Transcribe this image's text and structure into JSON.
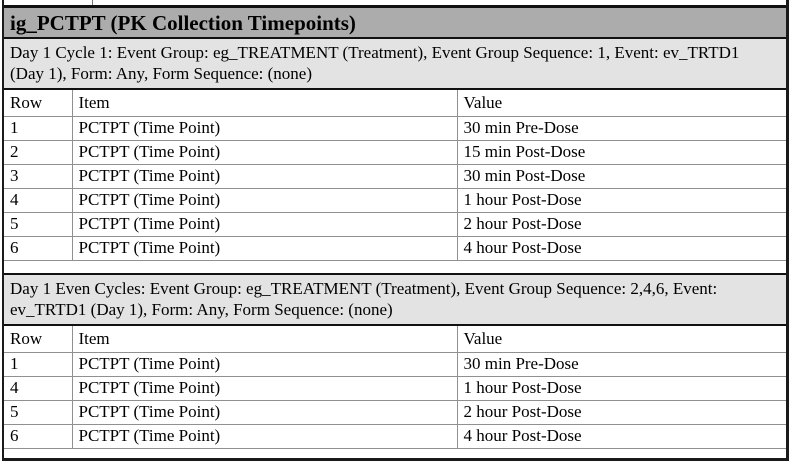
{
  "doc": {
    "title": "ig_PCTPT (PK Collection Timepoints)"
  },
  "columns": {
    "row": "Row",
    "item": "Item",
    "value": "Value"
  },
  "sections": [
    {
      "header": "Day 1 Cycle 1: Event Group: eg_TREATMENT (Treatment), Event Group Sequence: 1, Event: ev_TRTD1 (Day 1), Form: Any, Form Sequence: (none)",
      "rows": [
        {
          "row": "1",
          "item": "PCTPT (Time Point)",
          "value": "30 min Pre-Dose"
        },
        {
          "row": "2",
          "item": "PCTPT (Time Point)",
          "value": "15 min Post-Dose"
        },
        {
          "row": "3",
          "item": "PCTPT (Time Point)",
          "value": "30 min Post-Dose"
        },
        {
          "row": "4",
          "item": "PCTPT (Time Point)",
          "value": "1 hour Post-Dose"
        },
        {
          "row": "5",
          "item": "PCTPT (Time Point)",
          "value": "2 hour Post-Dose"
        },
        {
          "row": "6",
          "item": "PCTPT (Time Point)",
          "value": "4 hour Post-Dose"
        }
      ]
    },
    {
      "header": "Day 1 Even Cycles: Event Group: eg_TREATMENT (Treatment), Event Group Sequence: 2,4,6, Event: ev_TRTD1 (Day 1), Form: Any, Form Sequence: (none)",
      "rows": [
        {
          "row": "1",
          "item": "PCTPT (Time Point)",
          "value": "30 min Pre-Dose"
        },
        {
          "row": "4",
          "item": "PCTPT (Time Point)",
          "value": "1 hour Post-Dose"
        },
        {
          "row": "5",
          "item": "PCTPT (Time Point)",
          "value": "2 hour Post-Dose"
        },
        {
          "row": "6",
          "item": "PCTPT (Time Point)",
          "value": "4 hour Post-Dose"
        }
      ]
    }
  ],
  "colors": {
    "title_bar_bg": "#acacac",
    "section_header_bg": "#e3e3e3",
    "grid_line": "#909090",
    "border": "#111111"
  }
}
